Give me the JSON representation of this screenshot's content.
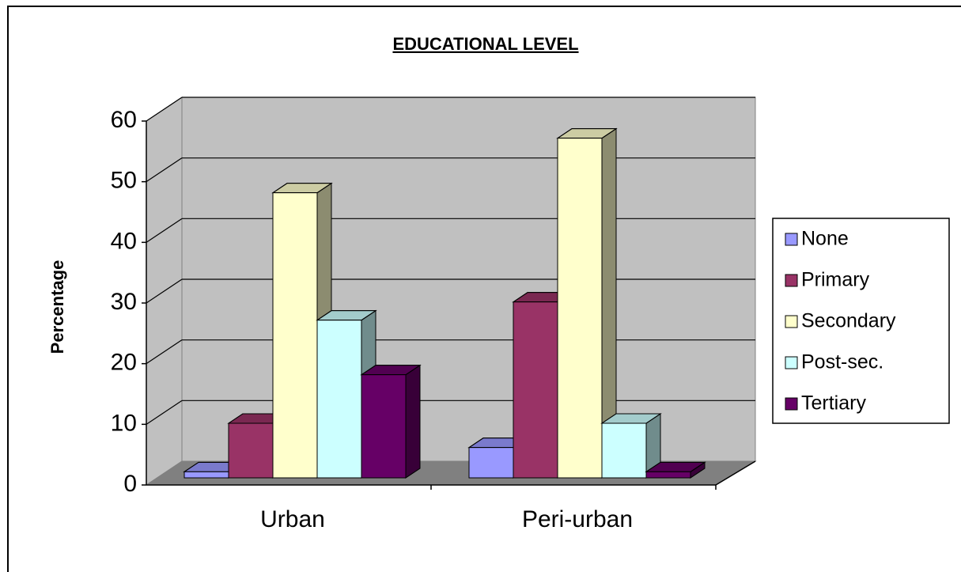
{
  "chart_data": {
    "type": "bar3d",
    "title": "EDUCATIONAL LEVEL",
    "y_label": "Percentage",
    "categories": [
      "Urban",
      "Peri-urban"
    ],
    "series": [
      {
        "name": "None",
        "color": "#9999ff",
        "values": [
          1,
          5
        ]
      },
      {
        "name": "Primary",
        "color": "#993366",
        "values": [
          9,
          29
        ]
      },
      {
        "name": "Secondary",
        "color": "#ffffcc",
        "values": [
          47,
          56
        ]
      },
      {
        "name": "Post-sec.",
        "color": "#ccffff",
        "values": [
          26,
          9
        ]
      },
      {
        "name": "Tertiary",
        "color": "#660066",
        "values": [
          17,
          1
        ]
      }
    ],
    "ylim": [
      0,
      60
    ],
    "yticks": [
      0,
      10,
      20,
      30,
      40,
      50,
      60
    ],
    "grid": true,
    "legend": "right"
  }
}
